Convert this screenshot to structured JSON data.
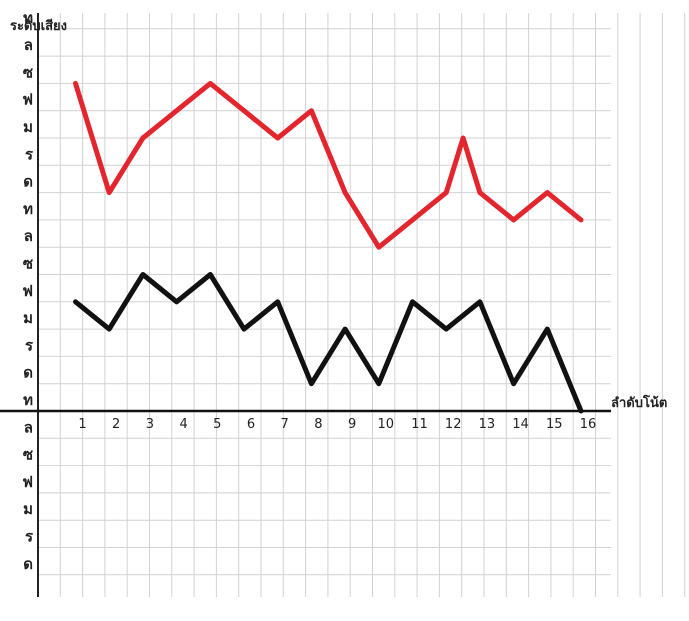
{
  "chart_data": {
    "type": "line",
    "ylabel": "ระดับเสียง",
    "xlabel": "ลำดับโน้ต",
    "x_ticks": [
      "1",
      "2",
      "3",
      "4",
      "5",
      "6",
      "7",
      "8",
      "9",
      "10",
      "11",
      "12",
      "13",
      "14",
      "15",
      "16"
    ],
    "y_ticks": [
      "ท",
      "ล",
      "ซ",
      "ฟ",
      "ม",
      "ร",
      "ด",
      "ท",
      "ล",
      "ซ",
      "ฟ",
      "ม",
      "ร",
      "ด",
      "ท",
      "ล",
      "ซ",
      "ฟ",
      "ม",
      "ร",
      "ด"
    ],
    "y_levels": [
      14,
      13,
      12,
      11,
      10,
      9,
      8,
      7,
      6,
      5,
      4,
      3,
      2,
      1,
      0,
      -1,
      -2,
      -3,
      -4,
      -5,
      -6
    ],
    "grid": true,
    "series": [
      {
        "color": "#e3262e",
        "points": [
          [
            1,
            12
          ],
          [
            2,
            8
          ],
          [
            3,
            10
          ],
          [
            4,
            11
          ],
          [
            5,
            12
          ],
          [
            6,
            11
          ],
          [
            7,
            10
          ],
          [
            8,
            11
          ],
          [
            9,
            8
          ],
          [
            10,
            6
          ],
          [
            11,
            7
          ],
          [
            12,
            8
          ],
          [
            12.5,
            10
          ],
          [
            13,
            8
          ],
          [
            14,
            7
          ],
          [
            15,
            8
          ],
          [
            16,
            7
          ]
        ]
      },
      {
        "color": "#111111",
        "points": [
          [
            1,
            4
          ],
          [
            2,
            3
          ],
          [
            3,
            5
          ],
          [
            4,
            4
          ],
          [
            5,
            5
          ],
          [
            6,
            3
          ],
          [
            7,
            4
          ],
          [
            8,
            1
          ],
          [
            9,
            3
          ],
          [
            10,
            1
          ],
          [
            11,
            4
          ],
          [
            12,
            3
          ],
          [
            13,
            4
          ],
          [
            14,
            1
          ],
          [
            15,
            3
          ],
          [
            16,
            0
          ]
        ]
      }
    ]
  }
}
